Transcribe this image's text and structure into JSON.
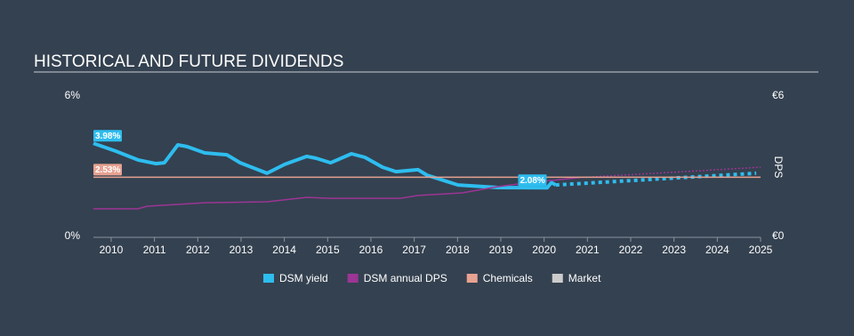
{
  "chart_data": {
    "type": "line",
    "title": "HISTORICAL AND FUTURE DIVIDENDS",
    "ylim": [
      0,
      6
    ],
    "yticks": [
      {
        "value": 0,
        "label": "0%"
      },
      {
        "value": 6,
        "label": "6%"
      }
    ],
    "y2lim": [
      0,
      6
    ],
    "y2ticks": [
      {
        "value": 0,
        "label": "€0"
      },
      {
        "value": 6,
        "label": "€6"
      }
    ],
    "y2label": "DPS",
    "xlim": [
      2009.59,
      2025
    ],
    "xticks": [
      2010,
      2011,
      2012,
      2013,
      2014,
      2015,
      2016,
      2017,
      2018,
      2019,
      2020,
      2021,
      2022,
      2023,
      2024,
      2025
    ],
    "series": [
      {
        "name": "DSM yield",
        "color": "#2ebdef",
        "x": [
          2009.59,
          2010.1,
          2010.62,
          2011.03,
          2011.23,
          2011.54,
          2011.75,
          2012.16,
          2012.67,
          2012.98,
          2013.6,
          2014.01,
          2014.52,
          2014.73,
          2015.07,
          2015.55,
          2015.86,
          2016.27,
          2016.58,
          2017.09,
          2017.29,
          2018.01,
          2018.94,
          2020.07,
          2020.17,
          2020.27
        ],
        "values": [
          3.98,
          3.65,
          3.27,
          3.11,
          3.15,
          3.91,
          3.84,
          3.57,
          3.49,
          3.15,
          2.7,
          3.08,
          3.42,
          3.34,
          3.15,
          3.53,
          3.38,
          2.96,
          2.77,
          2.85,
          2.62,
          2.2,
          2.09,
          2.08,
          2.3,
          2.2
        ],
        "forecast_x": [
          2020.27,
          2024.9
        ],
        "forecast_values": [
          2.2,
          2.7
        ]
      },
      {
        "name": "DSM annual DPS",
        "color": "#9c3595",
        "axis": "y2",
        "x": [
          2009.59,
          2010.62,
          2010.83,
          2012.16,
          2013.6,
          2014.52,
          2015.03,
          2016.68,
          2017.09,
          2018.11,
          2018.94,
          2019.56,
          2020.79
        ],
        "values": [
          1.18,
          1.18,
          1.29,
          1.44,
          1.48,
          1.67,
          1.63,
          1.63,
          1.75,
          1.86,
          2.13,
          2.28,
          2.51
        ],
        "forecast_x": [
          2020.79,
          2025
        ],
        "forecast_values": [
          2.51,
          2.96
        ]
      },
      {
        "name": "Chemicals",
        "color": "#e7a291",
        "x": [
          2009.59,
          2025
        ],
        "values": [
          2.53,
          2.53
        ]
      },
      {
        "name": "Market",
        "color": "#cccccc"
      }
    ],
    "annotations": [
      {
        "x": 2009.59,
        "value": 3.98,
        "label": "3.98%",
        "color": "#2ebdef"
      },
      {
        "x": 2009.59,
        "value": 2.53,
        "label": "2.53%",
        "color": "#e7a291"
      },
      {
        "x": 2019.4,
        "value": 2.08,
        "label": "2.08%",
        "color": "#2ebdef"
      }
    ]
  }
}
